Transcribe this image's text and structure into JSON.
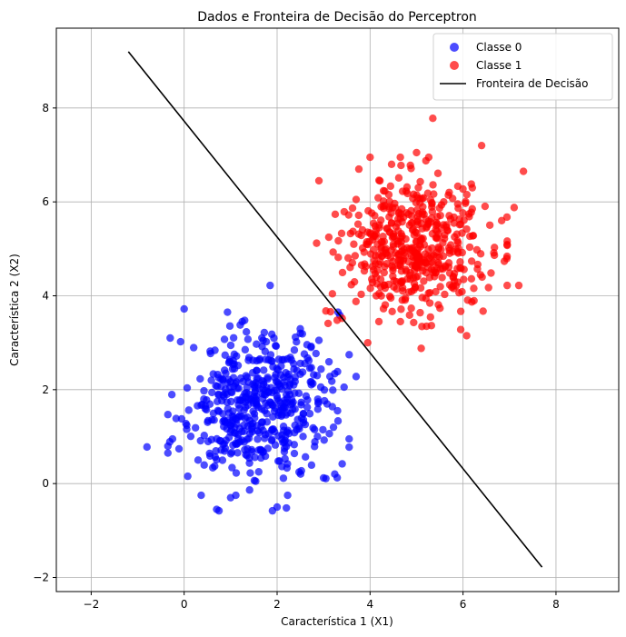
{
  "chart_data": {
    "type": "scatter",
    "title": "Dados e Fronteira de Decisão do Perceptron",
    "xlabel": "Característica 1 (X1)",
    "ylabel": "Característica 2 (X2)",
    "xlim": [
      -2.75,
      9.35
    ],
    "ylim": [
      -2.3,
      9.7
    ],
    "xticks": [
      -2,
      0,
      2,
      4,
      6,
      8
    ],
    "yticks": [
      -2,
      0,
      2,
      4,
      6,
      8
    ],
    "xtick_labels": [
      "−2",
      "0",
      "2",
      "4",
      "6",
      "8"
    ],
    "ytick_labels": [
      "−2",
      "0",
      "2",
      "4",
      "6",
      "8"
    ],
    "grid": true,
    "legend_position": "top-right",
    "series": [
      {
        "name": "Classe 0",
        "kind": "scatter",
        "color": "#0000ff",
        "center": [
          1.6,
          1.7
        ],
        "spread": [
          0.75,
          0.75
        ],
        "count": 500,
        "seed": 11,
        "points": [
          [
            -0.8,
            0.78
          ],
          [
            -0.3,
            3.1
          ],
          [
            0.0,
            3.72
          ],
          [
            0.7,
            -0.55
          ],
          [
            0.75,
            -0.58
          ],
          [
            1.0,
            -0.3
          ],
          [
            1.9,
            -0.58
          ],
          [
            2.0,
            -0.5
          ],
          [
            2.2,
            -0.52
          ],
          [
            1.85,
            4.22
          ],
          [
            3.7,
            2.28
          ],
          [
            3.4,
            0.42
          ],
          [
            3.0,
            0.12
          ],
          [
            -0.35,
            1.47
          ],
          [
            -0.25,
            0.95
          ],
          [
            0.3,
            0.5
          ],
          [
            2.9,
            3.05
          ],
          [
            3.3,
            1.55
          ],
          [
            2.5,
            3.2
          ],
          [
            1.25,
            3.45
          ]
        ]
      },
      {
        "name": "Classe 1",
        "kind": "scatter",
        "color": "#ff0000",
        "center": [
          5.0,
          5.0
        ],
        "spread": [
          0.75,
          0.75
        ],
        "count": 500,
        "seed": 29,
        "points": [
          [
            5.35,
            7.78
          ],
          [
            6.4,
            7.2
          ],
          [
            7.3,
            6.65
          ],
          [
            2.9,
            6.45
          ],
          [
            3.4,
            3.52
          ],
          [
            3.95,
            3.0
          ],
          [
            5.1,
            2.88
          ],
          [
            5.95,
            3.28
          ],
          [
            6.95,
            4.22
          ],
          [
            7.2,
            4.22
          ],
          [
            7.1,
            5.88
          ],
          [
            2.85,
            5.12
          ],
          [
            5.0,
            7.05
          ],
          [
            3.7,
            6.05
          ],
          [
            6.2,
            6.3
          ]
        ]
      },
      {
        "name": "Fronteira de Decisão",
        "kind": "line",
        "color": "#000000",
        "x": [
          -1.2,
          7.7
        ],
        "y": [
          9.2,
          -1.78
        ]
      }
    ]
  }
}
